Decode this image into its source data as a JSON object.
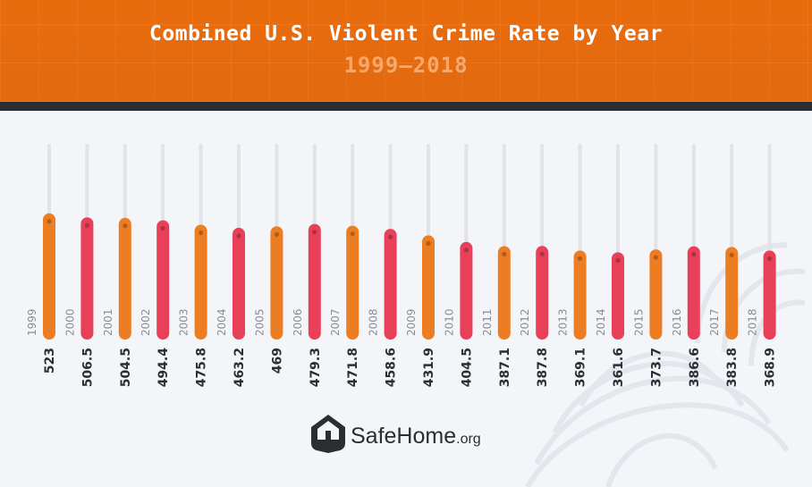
{
  "chart_data": {
    "type": "bar",
    "title": "Combined U.S. Violent Crime Rate by Year",
    "subtitle": "1999–2018",
    "categories": [
      "1999",
      "2000",
      "2001",
      "2002",
      "2003",
      "2004",
      "2005",
      "2006",
      "2007",
      "2008",
      "2009",
      "2010",
      "2011",
      "2012",
      "2013",
      "2014",
      "2015",
      "2016",
      "2017",
      "2018"
    ],
    "values": [
      523,
      506.5,
      504.5,
      494.4,
      475.8,
      463.2,
      469,
      479.3,
      471.8,
      458.6,
      431.9,
      404.5,
      387.1,
      387.8,
      369.1,
      361.6,
      373.7,
      386.6,
      383.8,
      368.9
    ],
    "value_labels": [
      "523",
      "506.5",
      "504.5",
      "494.4",
      "475.8",
      "463.2",
      "469",
      "479.3",
      "471.8",
      "458.6",
      "431.9",
      "404.5",
      "387.1",
      "387.8",
      "369.1",
      "361.6",
      "373.7",
      "386.6",
      "383.8",
      "368.9"
    ],
    "colors": [
      "#ed7d22",
      "#e9405a"
    ],
    "xlabel": "",
    "ylabel": "",
    "ylim": [
      0,
      900
    ],
    "grid": false,
    "legend": "none"
  },
  "brand": {
    "name": "SafeHome",
    "suffix": ".org",
    "color": "#2b2d33"
  }
}
